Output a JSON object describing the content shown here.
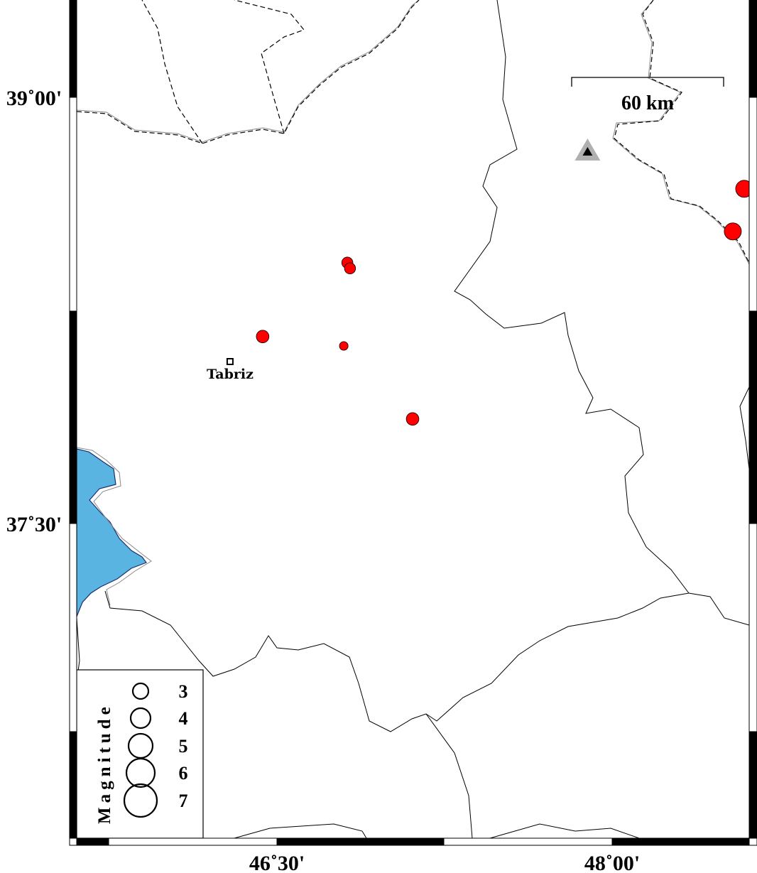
{
  "map": {
    "projection_extent": {
      "lon_ticks": [
        46.5,
        48.0
      ],
      "lat_ticks": [
        39.0,
        37.5
      ]
    },
    "axis_labels": {
      "lat_top": "39˚00'",
      "lat_bottom": "37˚30'",
      "lon_left": "46˚30'",
      "lon_right": "48˚00'"
    },
    "scale_bar": {
      "label": "60 km"
    },
    "city": {
      "name": "Tabriz",
      "lon": 46.29,
      "lat": 38.07
    },
    "volcano": {
      "lon": 47.89,
      "lat": 38.81,
      "fill": "#b0b0b0",
      "inner": "#000000"
    },
    "earthquakes": [
      {
        "lon": 46.815,
        "lat": 38.418,
        "mag": 2.1
      },
      {
        "lon": 46.827,
        "lat": 38.398,
        "mag": 2.1
      },
      {
        "lon": 46.436,
        "lat": 38.158,
        "mag": 2.4
      },
      {
        "lon": 46.799,
        "lat": 38.125,
        "mag": 1.6
      },
      {
        "lon": 47.107,
        "lat": 37.868,
        "mag": 2.4
      },
      {
        "lon": 48.54,
        "lat": 38.528,
        "mag": 3.3
      },
      {
        "lon": 48.591,
        "lat": 38.678,
        "mag": 3.3
      }
    ],
    "colors": {
      "earthquake": "#ff0000",
      "lake": "#5ab4e1",
      "border": "#000000"
    },
    "legend": {
      "title": "Magnitude",
      "items": [
        {
          "mag": 3,
          "label": "3"
        },
        {
          "mag": 4,
          "label": "4"
        },
        {
          "mag": 5,
          "label": "5"
        },
        {
          "mag": 6,
          "label": "6"
        },
        {
          "mag": 7,
          "label": "7"
        }
      ]
    }
  }
}
